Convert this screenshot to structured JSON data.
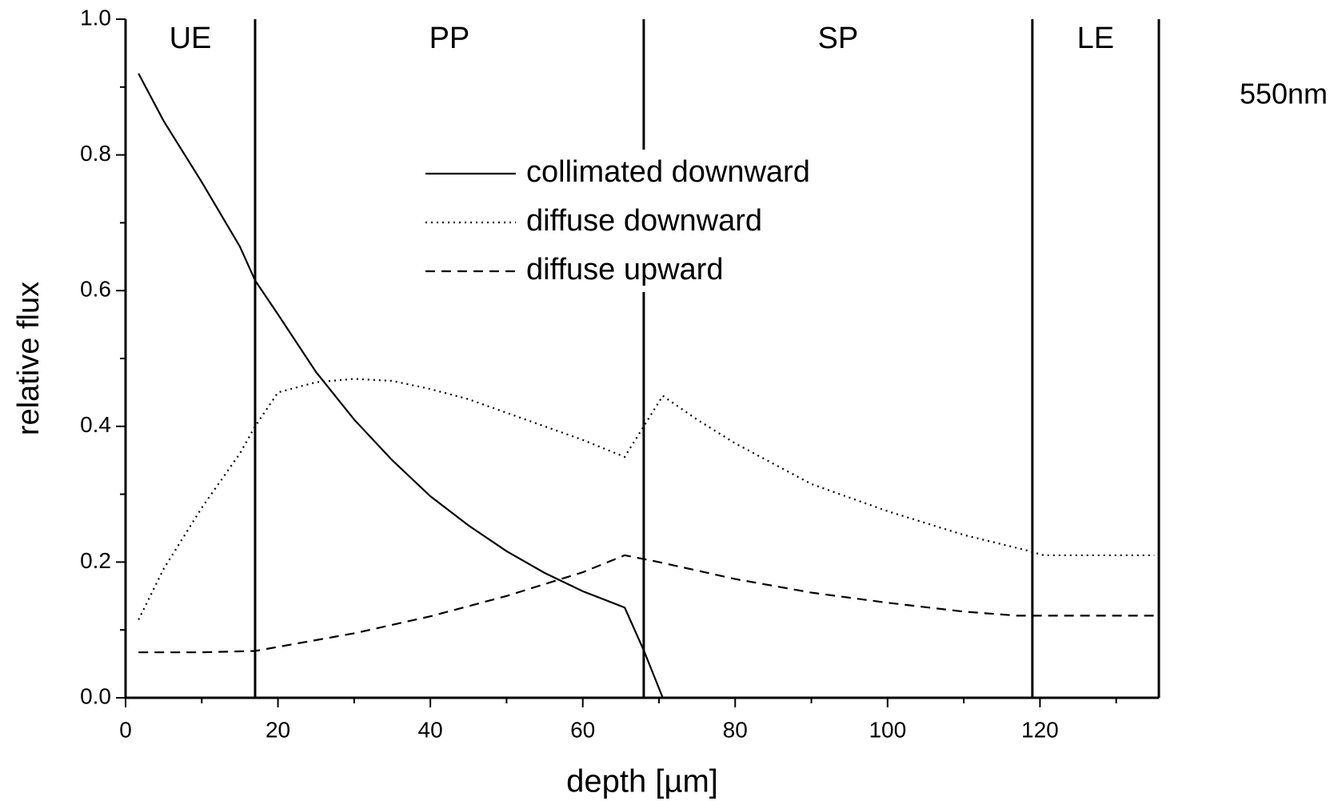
{
  "chart_data": {
    "type": "line",
    "xlabel": "depth [µm]",
    "ylabel": "relative flux",
    "annotation": "550nm",
    "xlim": [
      0,
      135.6
    ],
    "ylim": [
      0,
      1
    ],
    "xticks": [
      0,
      20,
      40,
      60,
      80,
      100,
      120
    ],
    "xminorticks": [
      10,
      30,
      50,
      70,
      90,
      110,
      130
    ],
    "yticks": [
      {
        "value": 0,
        "label": "0.0"
      },
      0.2,
      0.4,
      0.6,
      0.8,
      {
        "value": 1,
        "label": "1.0"
      }
    ],
    "yminorticks": [
      0.1,
      0.3,
      0.5,
      0.7,
      0.9
    ],
    "boundaries": [
      17,
      68,
      119
    ],
    "regions": [
      "UE",
      "PP",
      "SP",
      "LE"
    ],
    "series": [
      {
        "name": "collimated downward",
        "color": "#000000",
        "dash": "solid",
        "x": [
          1.7,
          5,
          10,
          15,
          17,
          20,
          25,
          30,
          35,
          40,
          45,
          50,
          55,
          60,
          65.5,
          68,
          70.5
        ],
        "values": [
          0.92,
          0.85,
          0.76,
          0.665,
          0.615,
          0.565,
          0.48,
          0.41,
          0.35,
          0.297,
          0.254,
          0.216,
          0.184,
          0.157,
          0.133,
          0.07,
          0
        ]
      },
      {
        "name": "diffuse downward",
        "color": "#000000",
        "dash": "dotted",
        "x": [
          1.7,
          5,
          10,
          15,
          17,
          20,
          25,
          30,
          35,
          40,
          45,
          50,
          55,
          60,
          65.5,
          68,
          70.5,
          75,
          80,
          90,
          100,
          110,
          118,
          120.5,
          135
        ],
        "values": [
          0.115,
          0.19,
          0.28,
          0.36,
          0.4,
          0.45,
          0.465,
          0.47,
          0.467,
          0.455,
          0.44,
          0.42,
          0.4,
          0.38,
          0.355,
          0.4,
          0.445,
          0.41,
          0.375,
          0.315,
          0.275,
          0.24,
          0.218,
          0.21,
          0.21
        ]
      },
      {
        "name": "diffuse upward",
        "color": "#000000",
        "dash": "dashed",
        "x": [
          1.7,
          10,
          17,
          20,
          30,
          40,
          50,
          60,
          65.5,
          70,
          80,
          90,
          100,
          110,
          117,
          135
        ],
        "values": [
          0.067,
          0.067,
          0.069,
          0.075,
          0.095,
          0.12,
          0.15,
          0.185,
          0.21,
          0.2,
          0.175,
          0.155,
          0.14,
          0.127,
          0.121,
          0.121
        ]
      }
    ]
  }
}
